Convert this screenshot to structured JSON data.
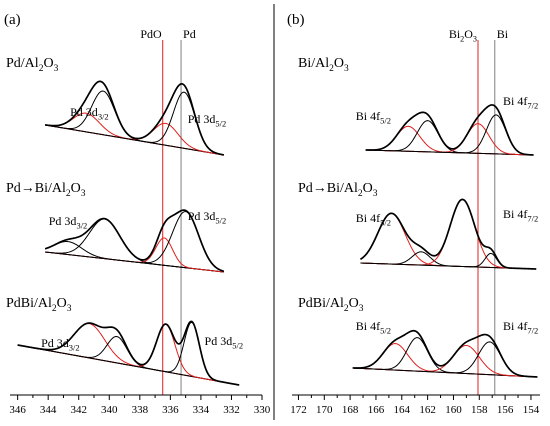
{
  "chart_data": [
    {
      "type": "line",
      "panel_label": "(a)",
      "x_axis": {
        "reversed": true,
        "xlim": [
          346.5,
          330
        ],
        "ticks": [
          346,
          344,
          342,
          340,
          338,
          336,
          334,
          332,
          330
        ],
        "tick_labels": [
          "346",
          "344",
          "342",
          "340",
          "338",
          "336",
          "334",
          "332",
          "330"
        ]
      },
      "y_axis": {
        "visible": false
      },
      "reference_lines": [
        {
          "label": "PdO",
          "x": 336.5,
          "color": "#e0201e"
        },
        {
          "label": "Pd",
          "x": 335.3,
          "color": "#808080"
        }
      ],
      "spectra": [
        {
          "sample": "Pd/Al₂O₃",
          "x_range": [
            344.2,
            332.5
          ],
          "peak_labels": [
            {
              "base": "Pd 3d",
              "sub": "3/2",
              "x": 341.3
            },
            {
              "base": "Pd 3d",
              "sub": "5/2",
              "x": 333.6
            }
          ],
          "components": [
            {
              "color": "red",
              "center": 341.5,
              "height": 0.24,
              "width": 0.85
            },
            {
              "color": "black",
              "center": 340.4,
              "height": 0.56,
              "width": 0.75
            },
            {
              "color": "red",
              "center": 336.3,
              "height": 0.28,
              "width": 0.8
            },
            {
              "color": "black",
              "center": 335.1,
              "height": 0.72,
              "width": 0.7
            }
          ]
        },
        {
          "sample": "Pd→Bi/Al₂O₃",
          "x_range": [
            344.2,
            332.5
          ],
          "peak_labels": [
            {
              "base": "Pd 3d",
              "sub": "3/2",
              "x": 342.7
            },
            {
              "base": "Pd 3d",
              "sub": "5/2",
              "x": 333.6
            }
          ],
          "components": [
            {
              "color": "black",
              "center": 342.7,
              "height": 0.18,
              "width": 0.9
            },
            {
              "color": "black",
              "center": 340.3,
              "height": 0.55,
              "width": 1.0
            },
            {
              "color": "red",
              "center": 336.4,
              "height": 0.38,
              "width": 0.55
            },
            {
              "color": "black",
              "center": 335.0,
              "height": 0.78,
              "width": 0.85
            }
          ]
        },
        {
          "sample": "PdBi/Al₂O₃",
          "x_range": [
            346.0,
            331.5
          ],
          "peak_labels": [
            {
              "base": "Pd 3d",
              "sub": "3/2",
              "x": 343.2
            },
            {
              "base": "Pd 3d",
              "sub": "5/2",
              "x": 332.5
            }
          ],
          "components": [
            {
              "color": "red",
              "center": 341.3,
              "height": 0.52,
              "width": 1.0
            },
            {
              "color": "black",
              "center": 339.5,
              "height": 0.4,
              "width": 0.65
            },
            {
              "color": "red",
              "center": 336.3,
              "height": 0.72,
              "width": 0.6
            },
            {
              "color": "black",
              "center": 334.6,
              "height": 0.82,
              "width": 0.5
            }
          ]
        }
      ]
    },
    {
      "type": "line",
      "panel_label": "(b)",
      "x_axis": {
        "reversed": true,
        "xlim": [
          172.5,
          153.3
        ],
        "ticks": [
          172,
          170,
          168,
          166,
          164,
          162,
          160,
          158,
          156,
          154
        ],
        "tick_labels": [
          "172",
          "170",
          "168",
          "166",
          "164",
          "162",
          "160",
          "158",
          "156",
          "154"
        ]
      },
      "y_axis": {
        "visible": false
      },
      "reference_lines": [
        {
          "label": "Bi₂O₃",
          "x": 158.1,
          "color": "#e0201e"
        },
        {
          "label": "Bi",
          "x": 156.8,
          "color": "#808080"
        }
      ],
      "spectra": [
        {
          "sample": "Bi/Al₂O₃",
          "x_range": [
            166.8,
            153.8
          ],
          "peak_labels": [
            {
              "base": "Bi 4f",
              "sub": "5/2",
              "x": 166.2
            },
            {
              "base": "Bi 4f",
              "sub": "7/2",
              "x": 154.8
            }
          ],
          "components": [
            {
              "color": "red",
              "center": 163.5,
              "height": 0.32,
              "width": 0.9
            },
            {
              "color": "black",
              "center": 162.0,
              "height": 0.4,
              "width": 0.8
            },
            {
              "color": "red",
              "center": 158.1,
              "height": 0.38,
              "width": 0.85
            },
            {
              "color": "black",
              "center": 156.7,
              "height": 0.5,
              "width": 0.75
            }
          ]
        },
        {
          "sample": "Pd→Bi/Al₂O₃",
          "x_range": [
            167.2,
            153.6
          ],
          "peak_labels": [
            {
              "base": "Bi 4f",
              "sub": "5/2",
              "x": 166.2
            },
            {
              "base": "Bi 4f",
              "sub": "7/2",
              "x": 154.8
            }
          ],
          "components": [
            {
              "color": "red",
              "center": 164.8,
              "height": 0.65,
              "width": 1.05
            },
            {
              "color": "black",
              "center": 162.5,
              "height": 0.17,
              "width": 0.7
            },
            {
              "color": "red",
              "center": 159.3,
              "height": 0.86,
              "width": 0.95
            },
            {
              "color": "black",
              "center": 157.1,
              "height": 0.18,
              "width": 0.45
            }
          ]
        },
        {
          "sample": "PdBi/Al₂O₃",
          "x_range": [
            167.8,
            153.5
          ],
          "peak_labels": [
            {
              "base": "Bi 4f",
              "sub": "5/2",
              "x": 166.2
            },
            {
              "base": "Bi 4f",
              "sub": "7/2",
              "x": 154.8
            }
          ],
          "components": [
            {
              "color": "red",
              "center": 164.5,
              "height": 0.34,
              "width": 0.95
            },
            {
              "color": "black",
              "center": 162.8,
              "height": 0.43,
              "width": 0.8
            },
            {
              "color": "red",
              "center": 159.0,
              "height": 0.36,
              "width": 1.0
            },
            {
              "color": "black",
              "center": 157.2,
              "height": 0.42,
              "width": 0.85
            }
          ]
        }
      ]
    }
  ]
}
